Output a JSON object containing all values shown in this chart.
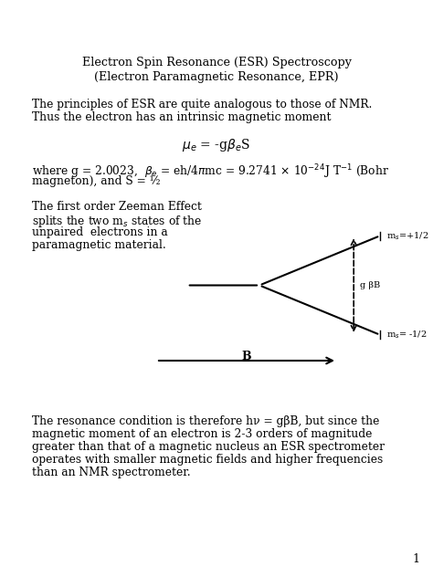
{
  "title_line1": "Electron Spin Resonance (ESR) Spectroscopy",
  "title_line2": "(Electron Paramagnetic Resonance, EPR)",
  "para1_line1": "The principles of ESR are quite analogous to those of NMR.",
  "para1_line2": "Thus the electron has an intrinsic magnetic moment",
  "formula": "$\\mu_e$ = -g$\\beta_e$S",
  "para2_line1": "where g = 2.0023,  $\\beta_e$ = eh/4$\\pi$mc = 9.2741 $\\times$ 10$^{-24}$J T$^{-1}$ (Bohr",
  "para2_line2": "magneton), and S = ½",
  "para3_line1": "The first order Zeeman Effect",
  "para3_line2": "splits the two m$_s$ states of the",
  "para3_line3": "unpaired  electrons in a",
  "para3_line4": "paramagnetic material.",
  "para4_line1": "The resonance condition is therefore hν = gβB, but since the",
  "para4_line2": "magnetic moment of an electron is 2-3 orders of magnitude",
  "para4_line3": "greater than that of a magnetic nucleus an ESR spectrometer",
  "para4_line4": "operates with smaller magnetic fields and higher frequencies",
  "para4_line5": "than an NMR spectrometer.",
  "page_num": "1",
  "bg_color": "#ffffff",
  "text_color": "#000000",
  "label_upper": "m$_s$=+1/2",
  "label_lower": "m$_s$= -1/2",
  "label_gap": "g βB",
  "label_B": "B"
}
